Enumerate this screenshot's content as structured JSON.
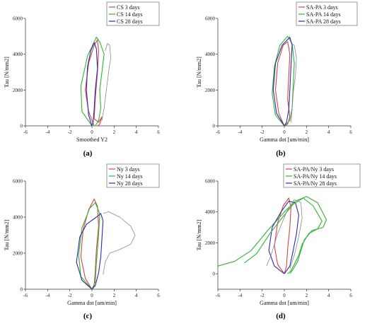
{
  "colors": {
    "red": "#d64545",
    "green": "#2fb52f",
    "blue": "#2b2bb0",
    "gray": "#8a8a8a"
  },
  "chart_data": [
    {
      "id": "a",
      "type": "line",
      "caption": "(a)",
      "xlabel": "Smoothed Y2",
      "ylabel": "Tau [N/mm2]",
      "xlim": [
        -6,
        6
      ],
      "ylim": [
        0,
        6000
      ],
      "xticks": [
        "-6",
        "-4",
        "-2",
        "0",
        "2",
        "4",
        "6"
      ],
      "yticks": [
        "0",
        "2000",
        "4000",
        "6000"
      ],
      "legend": [
        "CS 3 days",
        "CS 14 days",
        "CS 28 days"
      ],
      "series": [
        {
          "name": "CS 3 days",
          "color": "red",
          "x": [
            0.2,
            -0.3,
            -0.6,
            -0.3,
            0.2,
            0.5,
            0.6,
            0.5,
            0.3,
            0.2,
            0.6,
            0.9,
            0.7,
            0.5,
            0.2
          ],
          "y": [
            0,
            800,
            2000,
            3500,
            4500,
            4800,
            4200,
            3000,
            1500,
            400,
            200,
            500,
            100,
            0,
            0
          ]
        },
        {
          "name": "CS 14 days",
          "color": "green",
          "x": [
            0.0,
            -0.9,
            -1.0,
            -0.4,
            0.4,
            0.7,
            1.1,
            0.9,
            0.7,
            0.8,
            0.6,
            0.3,
            0.0
          ],
          "y": [
            0,
            800,
            2200,
            3900,
            4950,
            4700,
            4000,
            3000,
            2000,
            1000,
            300,
            0,
            0
          ]
        },
        {
          "name": "CS 28 days",
          "color": "blue",
          "x": [
            0.0,
            -0.3,
            -0.5,
            -0.4,
            -0.1,
            0.2,
            0.4,
            0.5,
            0.3,
            0.2,
            0.1,
            0.0
          ],
          "y": [
            0,
            600,
            2000,
            3300,
            4200,
            4650,
            4300,
            3200,
            2000,
            900,
            200,
            0
          ]
        },
        {
          "name": "",
          "color": "gray",
          "x": [
            1.2,
            1.4,
            1.6,
            1.7,
            1.5,
            1.3,
            1.1,
            0.9
          ],
          "y": [
            4200,
            4600,
            4500,
            3800,
            3000,
            2000,
            1000,
            300
          ]
        }
      ]
    },
    {
      "id": "b",
      "type": "line",
      "caption": "(b)",
      "xlabel": "Gamma dot [um/min]",
      "ylabel": "Tau [N/mm2]",
      "xlim": [
        -6,
        6
      ],
      "ylim": [
        0,
        6000
      ],
      "xticks": [
        "-6",
        "-4",
        "-2",
        "0",
        "2",
        "4",
        "6"
      ],
      "yticks": [
        "0",
        "2000",
        "4000",
        "6000"
      ],
      "legend": [
        "SA-PA 3 days",
        "SA-PA 14 days",
        "SA-PA 28 days"
      ],
      "series": [
        {
          "name": "SA-PA 3 days",
          "color": "red",
          "x": [
            0.0,
            -0.5,
            -0.8,
            -0.6,
            -0.1,
            0.3,
            0.5,
            0.4,
            0.3,
            0.5,
            0.3,
            0.0
          ],
          "y": [
            0,
            700,
            2000,
            3500,
            4500,
            4700,
            4000,
            2800,
            1500,
            500,
            100,
            0
          ]
        },
        {
          "name": "SA-PA 14 days",
          "color": "green",
          "x": [
            0.0,
            -0.8,
            -1.1,
            -0.9,
            -0.4,
            0.3,
            0.7,
            0.9,
            0.8,
            0.7,
            0.5,
            0.0
          ],
          "y": [
            0,
            600,
            1800,
            3300,
            4500,
            5000,
            4600,
            3500,
            2200,
            1000,
            300,
            0
          ]
        },
        {
          "name": "SA-PA 28 days",
          "color": "blue",
          "x": [
            0.0,
            -0.7,
            -1.0,
            -0.8,
            -0.2,
            0.5,
            0.7,
            0.6,
            0.5,
            0.4,
            0.2,
            0.0
          ],
          "y": [
            0,
            700,
            2000,
            3500,
            4500,
            4950,
            4500,
            3300,
            2000,
            900,
            200,
            0
          ]
        },
        {
          "name": "",
          "color": "gray",
          "x": [
            0.6,
            0.9,
            1.1,
            1.0,
            0.8,
            0.7,
            0.6
          ],
          "y": [
            4600,
            4500,
            3800,
            2800,
            1800,
            900,
            200
          ]
        }
      ]
    },
    {
      "id": "c",
      "type": "line",
      "caption": "(c)",
      "xlabel": "Gamma dot [um/min]",
      "ylabel": "Tau [N/mm2]",
      "xlim": [
        -6,
        6
      ],
      "ylim": [
        0,
        6000
      ],
      "xticks": [
        "-6",
        "-4",
        "-2",
        "0",
        "2",
        "4",
        "6"
      ],
      "yticks": [
        "0",
        "2000",
        "4000",
        "6000"
      ],
      "legend": [
        "Ny 3 days",
        "Ny 14 days",
        "Ny 28 days"
      ],
      "series": [
        {
          "name": "Ny 3 days",
          "color": "red",
          "x": [
            0.0,
            -0.6,
            -1.0,
            -0.8,
            -0.3,
            0.2,
            0.5,
            0.6,
            0.4,
            0.3,
            0.2,
            0.0
          ],
          "y": [
            0,
            600,
            1800,
            3300,
            4400,
            5000,
            4600,
            3500,
            2200,
            1000,
            200,
            0
          ]
        },
        {
          "name": "Ny 14 days",
          "color": "green",
          "x": [
            0.0,
            -1.0,
            -1.2,
            -0.9,
            -0.2,
            0.3,
            0.7,
            0.6,
            0.4,
            0.3,
            0.0
          ],
          "y": [
            0,
            700,
            1900,
            3400,
            4500,
            4800,
            4200,
            3000,
            1500,
            400,
            0
          ]
        },
        {
          "name": "Ny 28 days",
          "color": "blue",
          "x": [
            0.0,
            -0.9,
            -1.4,
            -1.1,
            -0.5,
            0.4,
            0.8,
            1.0,
            0.9,
            0.8,
            0.6,
            0.3,
            0.0
          ],
          "y": [
            0,
            500,
            1500,
            2900,
            3600,
            4000,
            4200,
            3800,
            2800,
            1800,
            900,
            200,
            0
          ]
        },
        {
          "name": "",
          "color": "gray",
          "x": [
            1.0,
            1.5,
            2.5,
            3.5,
            3.9,
            3.5,
            2.5,
            1.6,
            1.2,
            1.0
          ],
          "y": [
            4200,
            4300,
            4000,
            3500,
            3000,
            2500,
            2200,
            2000,
            1500,
            800
          ]
        }
      ]
    },
    {
      "id": "d",
      "type": "line",
      "caption": "(d)",
      "xlabel": "Gamma dot [um/min]",
      "ylabel": "Tau [N/mm2]",
      "xlim": [
        -6,
        6
      ],
      "ylim": [
        -1000,
        6000
      ],
      "xticks": [
        "-6",
        "-4",
        "-2",
        "0",
        "2",
        "4",
        "6"
      ],
      "yticks": [
        "0",
        "2000",
        "4000",
        "6000"
      ],
      "legend": [
        "SA-PA/Ny 3 days",
        "SA-PA/Ny 14 days",
        "SA-PA/Ny 28 days"
      ],
      "series": [
        {
          "name": "SA-PA/Ny 3 days",
          "color": "red",
          "x": [
            0.0,
            -0.6,
            -0.9,
            -0.6,
            -0.1,
            0.4,
            0.6,
            0.5,
            0.3,
            0.2,
            0.0
          ],
          "y": [
            0,
            600,
            1800,
            3300,
            4400,
            4900,
            4300,
            3000,
            1600,
            500,
            0
          ]
        },
        {
          "name": "SA-PA/Ny 14 days",
          "color": "green",
          "x": [
            -6.0,
            -4.5,
            -3.0,
            -1.5,
            0.0,
            1.0,
            2.0,
            3.0,
            3.8,
            3.5,
            2.5,
            1.8,
            1.5,
            1.2,
            0.8,
            0.5
          ],
          "y": [
            500,
            800,
            1500,
            2800,
            4000,
            4700,
            5000,
            4600,
            3500,
            3000,
            2800,
            2200,
            1500,
            800,
            300,
            0
          ]
        },
        {
          "name": "SA-PA/Ny 28 days",
          "color": "blue",
          "x": [
            0.0,
            -0.9,
            -1.4,
            -1.1,
            -0.3,
            0.4,
            1.0,
            1.3,
            1.1,
            0.8,
            0.5,
            0.0
          ],
          "y": [
            0,
            500,
            1500,
            3000,
            4000,
            4700,
            4600,
            3800,
            2600,
            1500,
            500,
            0
          ]
        },
        {
          "name": "",
          "color": "green",
          "x": [
            -3.6,
            -2.5,
            -1.3,
            0.0,
            0.8,
            1.7,
            2.6,
            3.4,
            3.0,
            2.2,
            1.6,
            1.3,
            0.9,
            0.6,
            0.3
          ],
          "y": [
            700,
            1300,
            2600,
            3800,
            4500,
            4900,
            4400,
            3400,
            2900,
            2600,
            1900,
            1200,
            600,
            200,
            0
          ]
        },
        {
          "name": "",
          "color": "gray",
          "x": [
            -1.6,
            -1.2,
            -0.6,
            0.2,
            0.9,
            1.5,
            1.6,
            1.3,
            0.9,
            0.5
          ],
          "y": [
            500,
            1200,
            2600,
            4000,
            4800,
            4600,
            3600,
            2400,
            1200,
            300
          ]
        }
      ]
    }
  ]
}
